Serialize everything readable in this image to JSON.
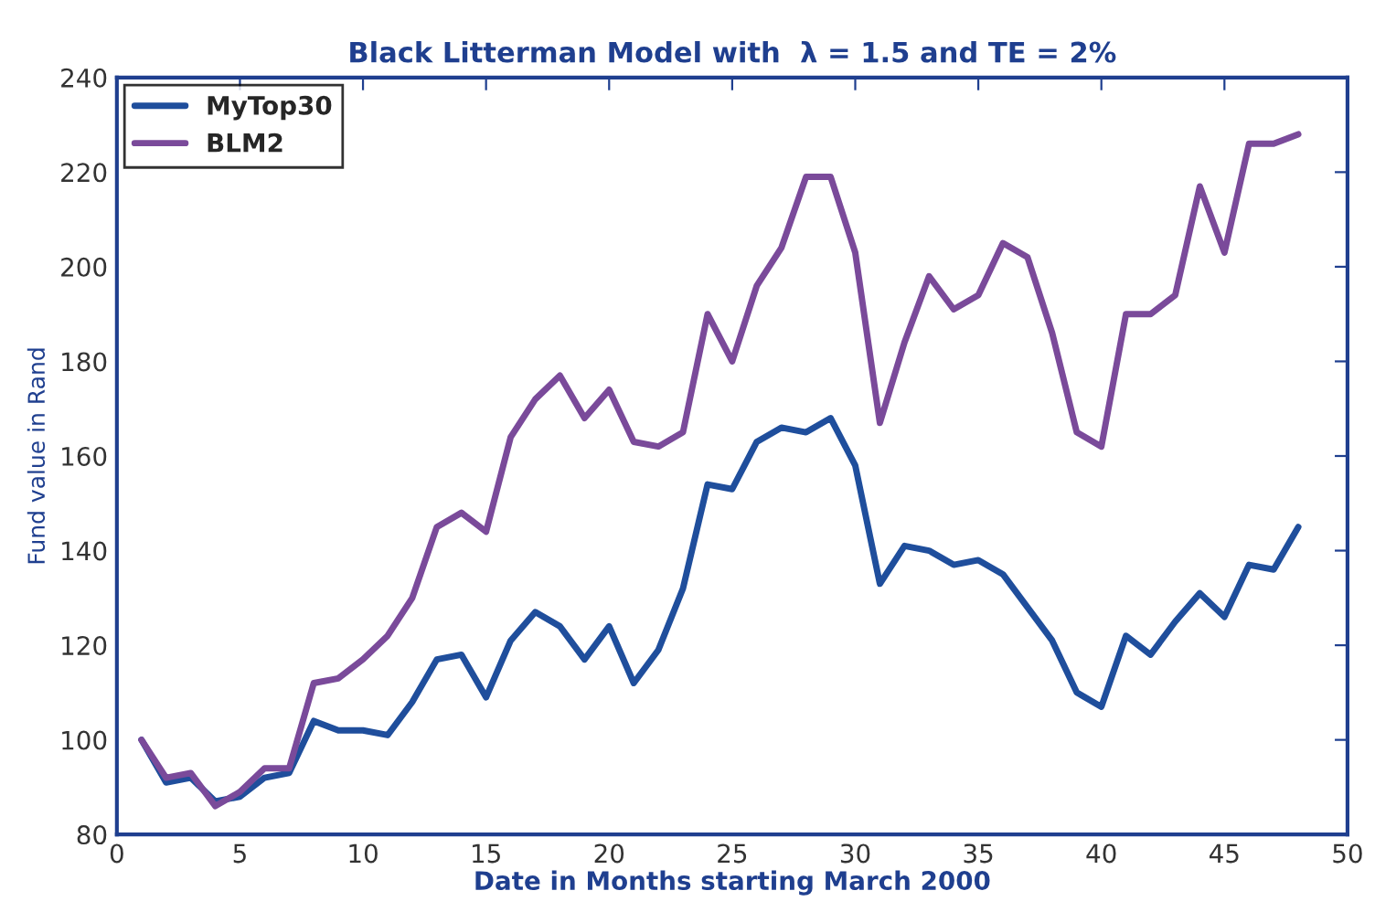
{
  "chart_data": {
    "type": "line",
    "title": "Black Litterman Model with  λ = 1.5 and TE = 2%",
    "xlabel": "Date in Months starting March 2000",
    "ylabel": "Fund value in Rand",
    "x": [
      1,
      2,
      3,
      4,
      5,
      6,
      7,
      8,
      9,
      10,
      11,
      12,
      13,
      14,
      15,
      16,
      17,
      18,
      19,
      20,
      21,
      22,
      23,
      24,
      25,
      26,
      27,
      28,
      29,
      30,
      31,
      32,
      33,
      34,
      35,
      36,
      37,
      38,
      39,
      40,
      41,
      42,
      43,
      44,
      45,
      46,
      47,
      48
    ],
    "series": [
      {
        "name": "MyTop30",
        "color": "#1f4e9c",
        "values": [
          100,
          91,
          92,
          87,
          88,
          92,
          93,
          104,
          102,
          102,
          101,
          108,
          117,
          118,
          109,
          121,
          127,
          124,
          117,
          124,
          112,
          119,
          132,
          154,
          153,
          163,
          166,
          165,
          168,
          158,
          133,
          141,
          140,
          137,
          138,
          135,
          128,
          121,
          110,
          107,
          122,
          118,
          125,
          131,
          126,
          137,
          136,
          145
        ]
      },
      {
        "name": "BLM2",
        "color": "#7a4a9a",
        "values": [
          100,
          92,
          93,
          86,
          89,
          94,
          94,
          112,
          113,
          117,
          122,
          130,
          145,
          148,
          144,
          164,
          172,
          177,
          168,
          174,
          163,
          162,
          165,
          190,
          180,
          196,
          204,
          219,
          219,
          203,
          167,
          184,
          198,
          191,
          194,
          205,
          202,
          186,
          165,
          162,
          190,
          190,
          194,
          217,
          203,
          226,
          226,
          228
        ]
      }
    ],
    "xlim": [
      0,
      50
    ],
    "xticks": [
      0,
      5,
      10,
      15,
      20,
      25,
      30,
      35,
      40,
      45,
      50
    ],
    "ylim": [
      80,
      240
    ],
    "yticks": [
      80,
      100,
      120,
      140,
      160,
      180,
      200,
      220,
      240
    ],
    "grid": false,
    "legend": "top left",
    "line_style": "solid",
    "marker": "none"
  }
}
